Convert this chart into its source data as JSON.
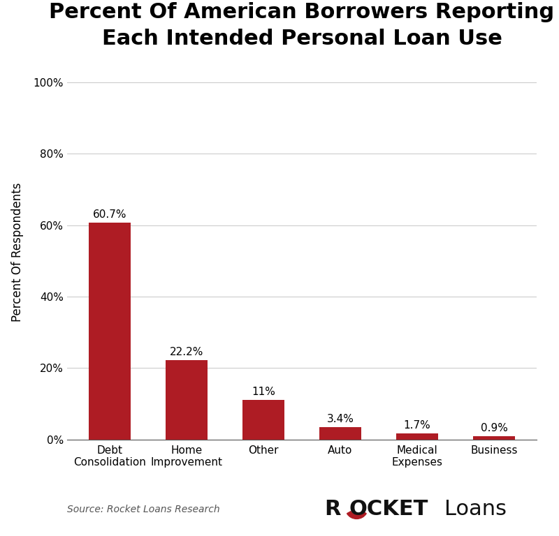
{
  "title": "Percent Of American Borrowers Reporting\nEach Intended Personal Loan Use",
  "ylabel": "Percent Of Respondents",
  "categories": [
    "Debt\nConsolidation",
    "Home\nImprovement",
    "Other",
    "Auto",
    "Medical\nExpenses",
    "Business"
  ],
  "values": [
    60.7,
    22.2,
    11.0,
    3.4,
    1.7,
    0.9
  ],
  "labels": [
    "60.7%",
    "22.2%",
    "11%",
    "3.4%",
    "1.7%",
    "0.9%"
  ],
  "bar_color": "#ae1c24",
  "yticks": [
    0,
    20,
    40,
    60,
    80,
    100
  ],
  "ytick_labels": [
    "0%",
    "20%",
    "40%",
    "60%",
    "80%",
    "100%"
  ],
  "ylim": [
    0,
    105
  ],
  "source_text": "Source: Rocket Loans Research",
  "background_color": "#ffffff",
  "title_fontsize": 22,
  "label_fontsize": 11,
  "ylabel_fontsize": 12,
  "tick_fontsize": 11,
  "source_fontsize": 10,
  "bar_color_accent": "#ae1c24",
  "logo_fontsize_rocket": 22,
  "logo_fontsize_loans": 22
}
